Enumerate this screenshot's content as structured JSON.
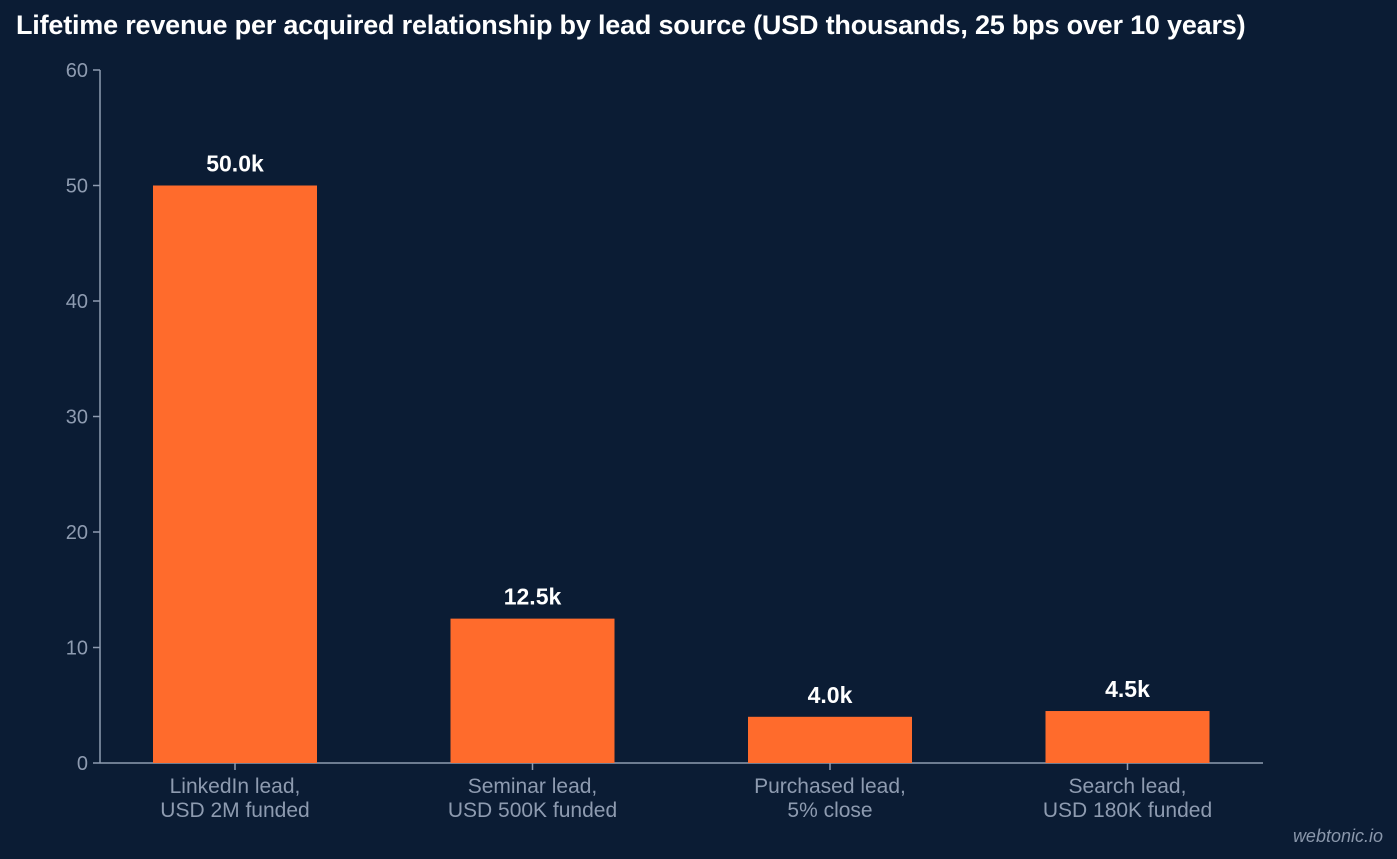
{
  "chart_data": {
    "type": "bar",
    "title": "Lifetime revenue per acquired relationship by lead source (USD thousands, 25 bps over 10 years)",
    "xlabel": "",
    "ylabel": "",
    "ylim": [
      0,
      60
    ],
    "yticks": [
      0,
      10,
      20,
      30,
      40,
      50,
      60
    ],
    "categories": [
      [
        "LinkedIn lead,",
        "USD 2M funded"
      ],
      [
        "Seminar lead,",
        "USD 500K funded"
      ],
      [
        "Purchased lead,",
        "5% close"
      ],
      [
        "Search lead,",
        "USD 180K funded"
      ]
    ],
    "values": [
      50.0,
      12.5,
      4.0,
      4.5
    ],
    "data_labels": [
      "50.0k",
      "12.5k",
      "4.0k",
      "4.5k"
    ],
    "bar_color": "#ff6b2c",
    "grid": false,
    "legend": "none"
  },
  "colors": {
    "background": "#0b1c34",
    "axis": "#8e9bb0",
    "title": "#ffffff"
  },
  "watermark": "webtonic.io"
}
